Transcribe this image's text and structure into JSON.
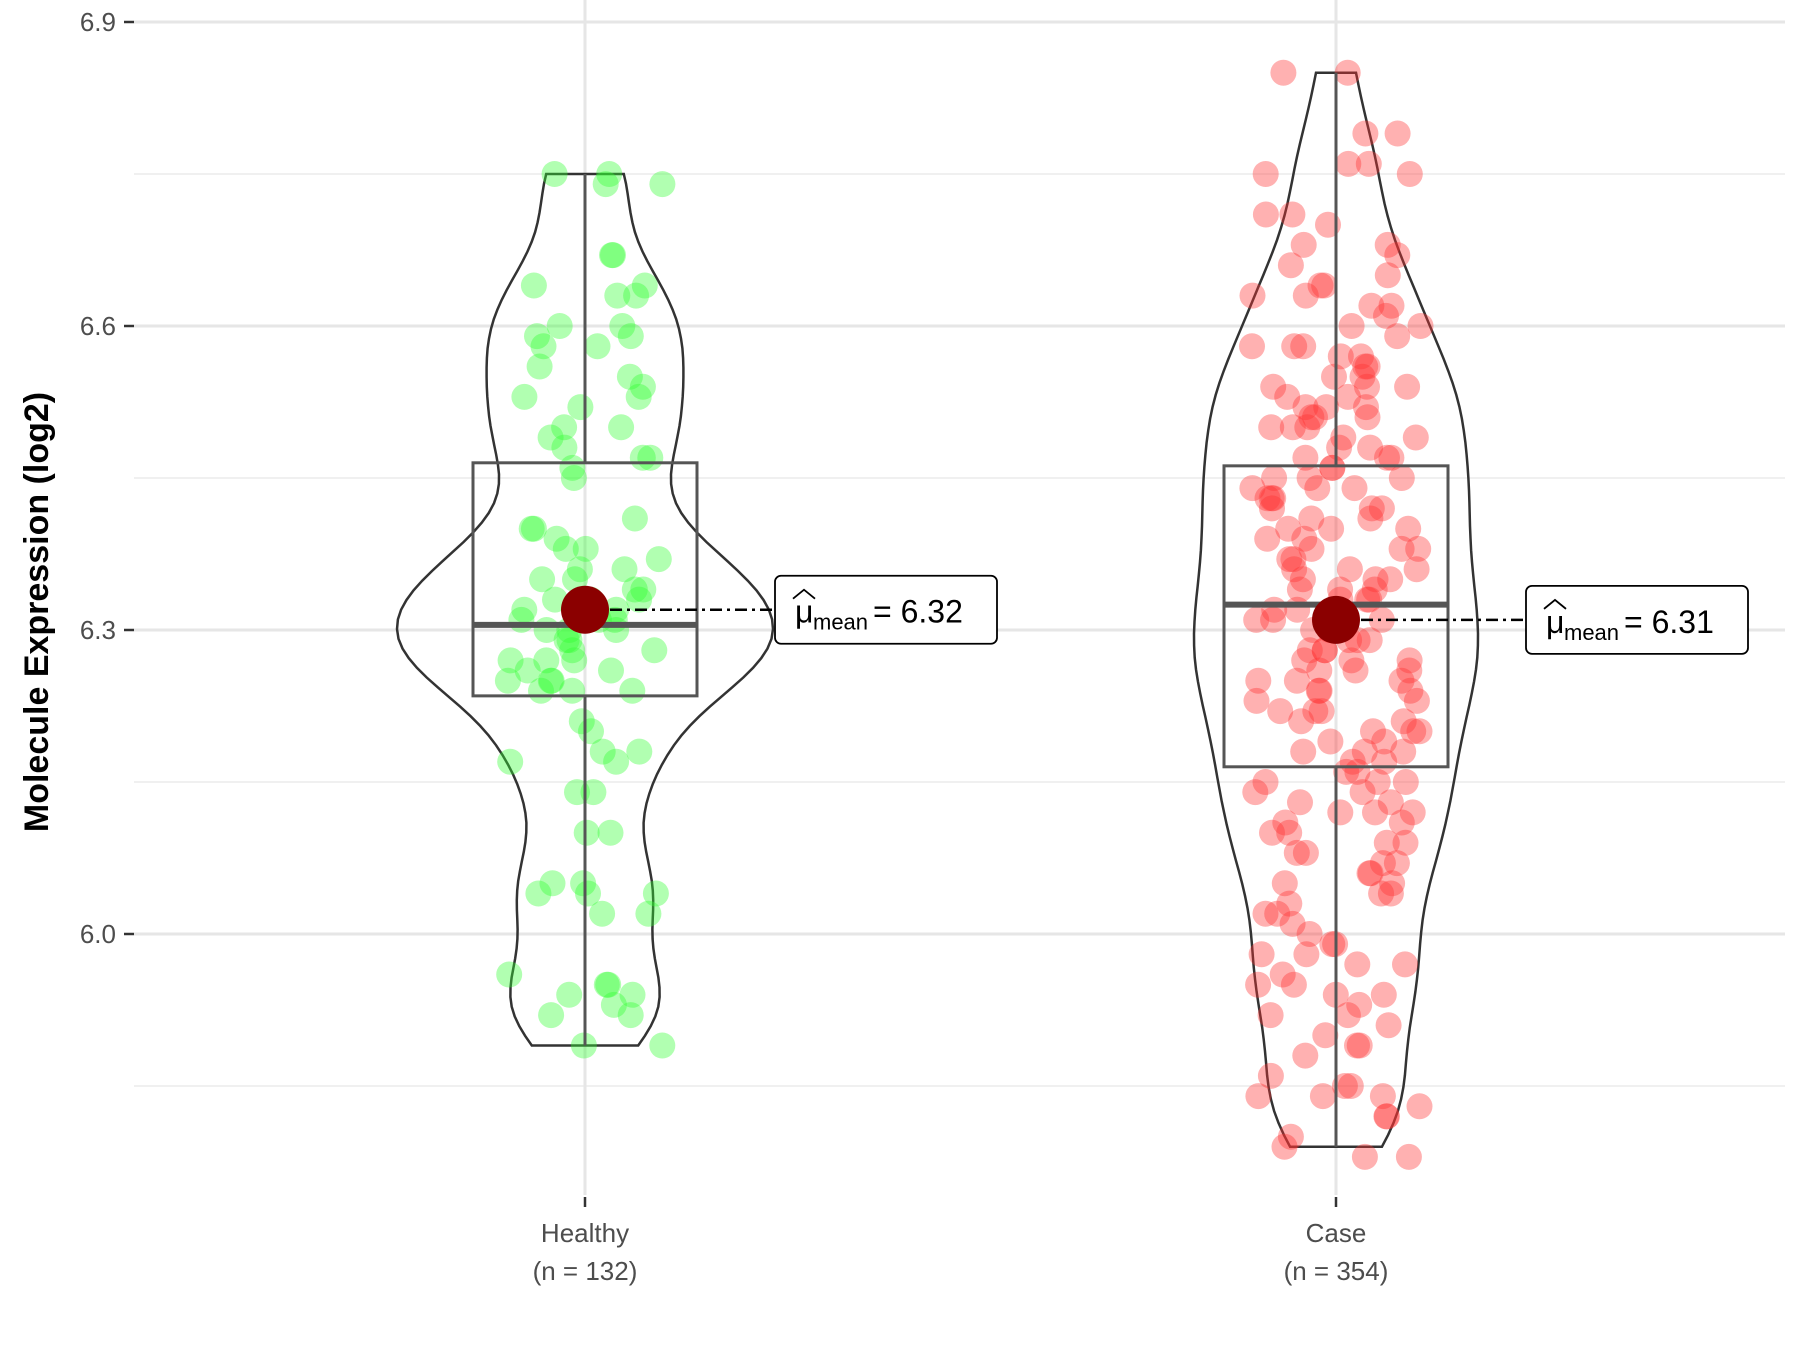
{
  "chart_data": {
    "type": "violin",
    "ylabel": "Molecule Expression (log2)",
    "y_ticks": [
      "6.0",
      "6.3",
      "6.6",
      "6.9"
    ],
    "ylim": [
      5.75,
      6.92
    ],
    "grid": true,
    "groups": [
      {
        "name": "Healthy",
        "n_label": "(n = 132)",
        "color": "#33ff33",
        "box": {
          "q1": 6.235,
          "median": 6.305,
          "q3": 6.465,
          "whisker_low": 5.89,
          "whisker_high": 6.75
        },
        "mean": 6.32,
        "mean_label": "= 6.32",
        "mean_symbol": "μ",
        "mean_subscript": "mean",
        "violin_y_range": [
          5.89,
          6.75
        ],
        "points": [
          6.75,
          6.75,
          6.74,
          6.74,
          6.67,
          6.67,
          6.64,
          6.64,
          6.63,
          6.63,
          6.6,
          6.6,
          6.59,
          6.59,
          6.58,
          6.58,
          6.56,
          6.55,
          6.54,
          6.53,
          6.53,
          6.52,
          6.5,
          6.5,
          6.49,
          6.48,
          6.47,
          6.47,
          6.46,
          6.45,
          6.41,
          6.4,
          6.4,
          6.39,
          6.38,
          6.38,
          6.37,
          6.36,
          6.36,
          6.35,
          6.35,
          6.34,
          6.34,
          6.33,
          6.33,
          6.33,
          6.32,
          6.32,
          6.31,
          6.31,
          6.31,
          6.3,
          6.3,
          6.3,
          6.29,
          6.29,
          6.28,
          6.28,
          6.27,
          6.27,
          6.27,
          6.26,
          6.26,
          6.25,
          6.25,
          6.25,
          6.24,
          6.24,
          6.24,
          6.21,
          6.2,
          6.18,
          6.18,
          6.17,
          6.17,
          6.14,
          6.14,
          6.1,
          6.1,
          6.05,
          6.05,
          6.04,
          6.04,
          6.04,
          6.02,
          6.02,
          5.96,
          5.95,
          5.95,
          5.94,
          5.94,
          5.93,
          5.92,
          5.92,
          5.89,
          5.89
        ]
      },
      {
        "name": "Case",
        "n_label": "(n = 354)",
        "color": "#ff3333",
        "box": {
          "q1": 6.165,
          "median": 6.325,
          "q3": 6.462,
          "whisker_low": 5.79,
          "whisker_high": 6.85
        },
        "mean": 6.31,
        "mean_label": "= 6.31",
        "mean_symbol": "μ",
        "mean_subscript": "mean",
        "violin_y_range": [
          5.79,
          6.85
        ],
        "points": [
          6.85,
          6.85,
          6.79,
          6.79,
          6.76,
          6.76,
          6.75,
          6.75,
          6.71,
          6.71,
          6.7,
          6.68,
          6.68,
          6.67,
          6.66,
          6.65,
          6.64,
          6.64,
          6.63,
          6.63,
          6.62,
          6.62,
          6.61,
          6.6,
          6.6,
          6.59,
          6.58,
          6.58,
          6.58,
          6.57,
          6.57,
          6.56,
          6.56,
          6.55,
          6.55,
          6.54,
          6.54,
          6.54,
          6.53,
          6.53,
          6.52,
          6.52,
          6.52,
          6.51,
          6.51,
          6.51,
          6.5,
          6.5,
          6.5,
          6.49,
          6.49,
          6.48,
          6.48,
          6.47,
          6.47,
          6.47,
          6.46,
          6.46,
          6.45,
          6.45,
          6.45,
          6.44,
          6.44,
          6.44,
          6.43,
          6.43,
          6.43,
          6.42,
          6.42,
          6.42,
          6.41,
          6.41,
          6.4,
          6.4,
          6.4,
          6.39,
          6.39,
          6.38,
          6.38,
          6.38,
          6.37,
          6.37,
          6.36,
          6.36,
          6.36,
          6.35,
          6.35,
          6.35,
          6.34,
          6.34,
          6.34,
          6.33,
          6.33,
          6.33,
          6.32,
          6.32,
          6.31,
          6.31,
          6.31,
          6.3,
          6.3,
          6.3,
          6.29,
          6.29,
          6.29,
          6.28,
          6.28,
          6.28,
          6.27,
          6.27,
          6.27,
          6.26,
          6.26,
          6.26,
          6.25,
          6.25,
          6.25,
          6.24,
          6.24,
          6.24,
          6.23,
          6.23,
          6.22,
          6.22,
          6.22,
          6.21,
          6.21,
          6.2,
          6.2,
          6.2,
          6.19,
          6.19,
          6.18,
          6.18,
          6.18,
          6.17,
          6.17,
          6.16,
          6.16,
          6.15,
          6.15,
          6.15,
          6.14,
          6.14,
          6.13,
          6.13,
          6.12,
          6.12,
          6.12,
          6.11,
          6.11,
          6.1,
          6.1,
          6.09,
          6.09,
          6.08,
          6.08,
          6.07,
          6.07,
          6.06,
          6.06,
          6.05,
          6.05,
          6.04,
          6.04,
          6.03,
          6.02,
          6.02,
          6.01,
          6.0,
          5.99,
          5.99,
          5.98,
          5.98,
          5.97,
          5.97,
          5.96,
          5.95,
          5.95,
          5.94,
          5.94,
          5.93,
          5.92,
          5.92,
          5.91,
          5.9,
          5.89,
          5.89,
          5.88,
          5.86,
          5.85,
          5.85,
          5.84,
          5.84,
          5.84,
          5.83,
          5.82,
          5.82,
          5.8,
          5.79,
          5.78,
          5.78
        ]
      }
    ]
  }
}
